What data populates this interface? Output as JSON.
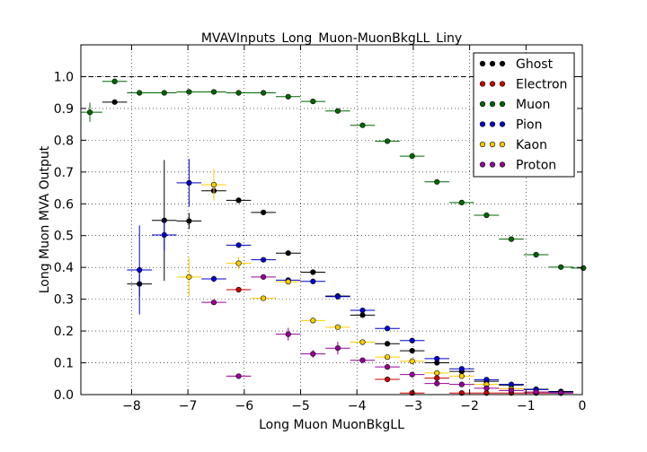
{
  "chart_data": {
    "type": "scatter",
    "title": "MVAVInputs_Long_Muon-MuonBkgLL_Liny",
    "xlabel": "Long Muon MuonBkgLL",
    "ylabel": "Long Muon MVA Output",
    "xlim": [
      -8.9,
      0
    ],
    "ylim": [
      0,
      1.1
    ],
    "xticks": [
      -8,
      -7,
      -6,
      -5,
      -4,
      -3,
      -2,
      -1,
      0
    ],
    "yticks": [
      0.0,
      0.1,
      0.2,
      0.3,
      0.4,
      0.5,
      0.6,
      0.7,
      0.8,
      0.9,
      1.0
    ],
    "reference_line": 1.0,
    "grid": true,
    "legend_position": "top-right",
    "bin_half_width": 0.22,
    "series": [
      {
        "name": "Ghost",
        "color": "#000000",
        "points": [
          {
            "x": -8.3,
            "y": 0.92,
            "err": 0.008
          },
          {
            "x": -7.86,
            "y": 0.348,
            "err": 0.04
          },
          {
            "x": -7.42,
            "y": 0.548,
            "err": 0.19
          },
          {
            "x": -6.98,
            "y": 0.546,
            "err": 0.025
          },
          {
            "x": -6.54,
            "y": 0.641,
            "err": 0.02
          },
          {
            "x": -6.1,
            "y": 0.611,
            "err": 0.008
          },
          {
            "x": -5.66,
            "y": 0.573,
            "err": 0.006
          },
          {
            "x": -5.22,
            "y": 0.445,
            "err": 0.006
          },
          {
            "x": -4.78,
            "y": 0.385,
            "err": 0.006
          },
          {
            "x": -4.34,
            "y": 0.31,
            "err": 0.005
          },
          {
            "x": -3.9,
            "y": 0.25,
            "err": 0.004
          },
          {
            "x": -3.46,
            "y": 0.16,
            "err": 0.004
          },
          {
            "x": -3.02,
            "y": 0.138,
            "err": 0.004
          },
          {
            "x": -2.58,
            "y": 0.1,
            "err": 0.003
          },
          {
            "x": -2.14,
            "y": 0.073,
            "err": 0.003
          },
          {
            "x": -1.7,
            "y": 0.042,
            "err": 0.002
          },
          {
            "x": -1.26,
            "y": 0.03,
            "err": 0.002
          },
          {
            "x": -0.82,
            "y": 0.017,
            "err": 0.002
          },
          {
            "x": -0.38,
            "y": 0.01,
            "err": 0.001
          }
        ]
      },
      {
        "name": "Electron",
        "color": "#cc0000",
        "points": [
          {
            "x": -6.1,
            "y": 0.33,
            "err": 0.006
          },
          {
            "x": -3.46,
            "y": 0.048,
            "err": 0.008
          },
          {
            "x": -3.02,
            "y": 0.005,
            "err": 0.003
          },
          {
            "x": -2.58,
            "y": 0.052,
            "err": 0.004
          },
          {
            "x": -2.14,
            "y": 0.005,
            "err": 0.002
          },
          {
            "x": -1.7,
            "y": 0.005,
            "err": 0.002
          },
          {
            "x": -1.26,
            "y": 0.005,
            "err": 0.002
          },
          {
            "x": -0.82,
            "y": 0.005,
            "err": 0.002
          },
          {
            "x": -0.38,
            "y": 0.005,
            "err": 0.002
          }
        ]
      },
      {
        "name": "Muon",
        "color": "#006600",
        "points": [
          {
            "x": -8.74,
            "y": 0.888,
            "err": 0.03
          },
          {
            "x": -8.3,
            "y": 0.985,
            "err": 0.008
          },
          {
            "x": -7.86,
            "y": 0.949,
            "err": 0.004
          },
          {
            "x": -7.42,
            "y": 0.949,
            "err": 0.004
          },
          {
            "x": -6.98,
            "y": 0.952,
            "err": 0.003
          },
          {
            "x": -6.54,
            "y": 0.952,
            "err": 0.003
          },
          {
            "x": -6.1,
            "y": 0.949,
            "err": 0.003
          },
          {
            "x": -5.66,
            "y": 0.949,
            "err": 0.003
          },
          {
            "x": -5.22,
            "y": 0.937,
            "err": 0.003
          },
          {
            "x": -4.78,
            "y": 0.922,
            "err": 0.003
          },
          {
            "x": -4.34,
            "y": 0.892,
            "err": 0.003
          },
          {
            "x": -3.9,
            "y": 0.847,
            "err": 0.003
          },
          {
            "x": -3.46,
            "y": 0.797,
            "err": 0.003
          },
          {
            "x": -3.02,
            "y": 0.75,
            "err": 0.003
          },
          {
            "x": -2.58,
            "y": 0.669,
            "err": 0.003
          },
          {
            "x": -2.14,
            "y": 0.604,
            "err": 0.003
          },
          {
            "x": -1.7,
            "y": 0.564,
            "err": 0.003
          },
          {
            "x": -1.26,
            "y": 0.489,
            "err": 0.003
          },
          {
            "x": -0.82,
            "y": 0.44,
            "err": 0.003
          },
          {
            "x": -0.38,
            "y": 0.401,
            "err": 0.003
          },
          {
            "x": 0.02,
            "y": 0.398,
            "err": 0.003
          }
        ]
      },
      {
        "name": "Pion",
        "color": "#0000cc",
        "points": [
          {
            "x": -7.86,
            "y": 0.392,
            "err": 0.14
          },
          {
            "x": -7.42,
            "y": 0.502,
            "err": 0.05
          },
          {
            "x": -6.98,
            "y": 0.666,
            "err": 0.075
          },
          {
            "x": -6.54,
            "y": 0.364,
            "err": 0.01
          },
          {
            "x": -6.1,
            "y": 0.47,
            "err": 0.006
          },
          {
            "x": -5.66,
            "y": 0.424,
            "err": 0.005
          },
          {
            "x": -5.22,
            "y": 0.36,
            "err": 0.005
          },
          {
            "x": -4.78,
            "y": 0.356,
            "err": 0.005
          },
          {
            "x": -4.34,
            "y": 0.308,
            "err": 0.004
          },
          {
            "x": -3.9,
            "y": 0.265,
            "err": 0.004
          },
          {
            "x": -3.46,
            "y": 0.208,
            "err": 0.004
          },
          {
            "x": -3.02,
            "y": 0.17,
            "err": 0.004
          },
          {
            "x": -2.58,
            "y": 0.113,
            "err": 0.003
          },
          {
            "x": -2.14,
            "y": 0.081,
            "err": 0.003
          },
          {
            "x": -1.7,
            "y": 0.047,
            "err": 0.002
          },
          {
            "x": -1.26,
            "y": 0.032,
            "err": 0.002
          },
          {
            "x": -0.82,
            "y": 0.016,
            "err": 0.002
          },
          {
            "x": -0.38,
            "y": 0.008,
            "err": 0.001
          }
        ]
      },
      {
        "name": "Kaon",
        "color": "#ffcc00",
        "points": [
          {
            "x": -6.98,
            "y": 0.37,
            "err": 0.06
          },
          {
            "x": -6.54,
            "y": 0.66,
            "err": 0.05
          },
          {
            "x": -6.1,
            "y": 0.413,
            "err": 0.02
          },
          {
            "x": -5.66,
            "y": 0.303,
            "err": 0.008
          },
          {
            "x": -5.22,
            "y": 0.355,
            "err": 0.007
          },
          {
            "x": -4.78,
            "y": 0.233,
            "err": 0.005
          },
          {
            "x": -4.34,
            "y": 0.212,
            "err": 0.005
          },
          {
            "x": -3.9,
            "y": 0.165,
            "err": 0.005
          },
          {
            "x": -3.46,
            "y": 0.118,
            "err": 0.004
          },
          {
            "x": -3.02,
            "y": 0.105,
            "err": 0.004
          },
          {
            "x": -2.58,
            "y": 0.068,
            "err": 0.003
          },
          {
            "x": -2.14,
            "y": 0.058,
            "err": 0.003
          },
          {
            "x": -1.7,
            "y": 0.032,
            "err": 0.002
          },
          {
            "x": -1.26,
            "y": 0.018,
            "err": 0.002
          },
          {
            "x": -0.82,
            "y": 0.008,
            "err": 0.001
          },
          {
            "x": -0.38,
            "y": 0.005,
            "err": 0.001
          }
        ]
      },
      {
        "name": "Proton",
        "color": "#990099",
        "points": [
          {
            "x": -6.1,
            "y": 0.058,
            "err": 0.006
          },
          {
            "x": -6.54,
            "y": 0.29,
            "err": 0.008
          },
          {
            "x": -5.66,
            "y": 0.37,
            "err": 0.008
          },
          {
            "x": -5.22,
            "y": 0.19,
            "err": 0.02
          },
          {
            "x": -4.78,
            "y": 0.128,
            "err": 0.012
          },
          {
            "x": -4.34,
            "y": 0.146,
            "err": 0.02
          },
          {
            "x": -3.9,
            "y": 0.108,
            "err": 0.006
          },
          {
            "x": -3.46,
            "y": 0.087,
            "err": 0.005
          },
          {
            "x": -3.02,
            "y": 0.063,
            "err": 0.004
          },
          {
            "x": -2.58,
            "y": 0.035,
            "err": 0.003
          },
          {
            "x": -2.14,
            "y": 0.032,
            "err": 0.003
          },
          {
            "x": -1.7,
            "y": 0.02,
            "err": 0.002
          },
          {
            "x": -1.26,
            "y": 0.013,
            "err": 0.002
          },
          {
            "x": -0.82,
            "y": 0.008,
            "err": 0.001
          },
          {
            "x": -0.38,
            "y": 0.005,
            "err": 0.001
          }
        ]
      }
    ]
  }
}
